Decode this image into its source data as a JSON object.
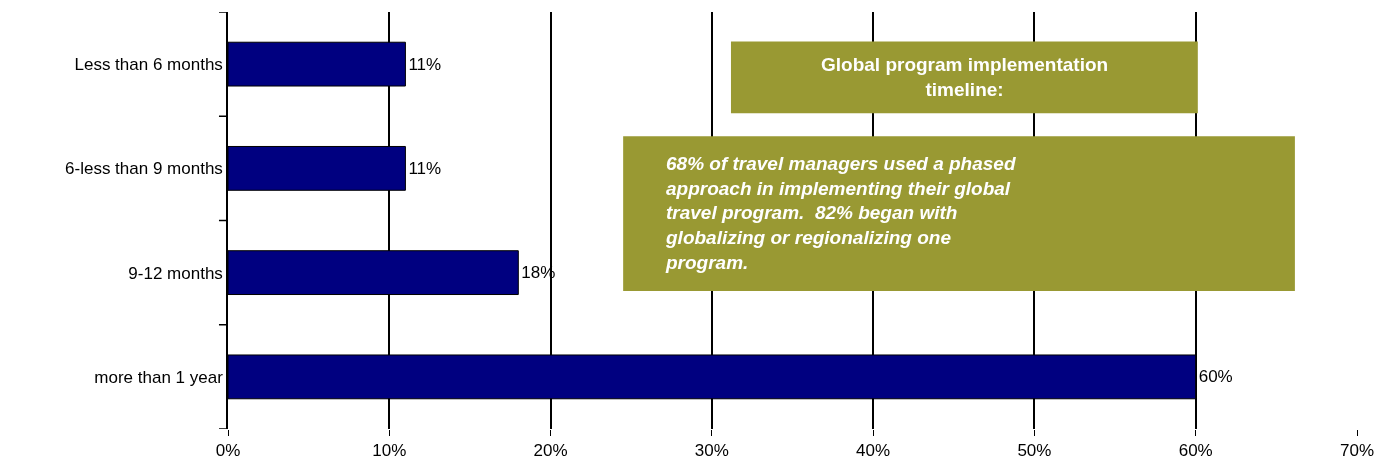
{
  "chart_data": {
    "type": "bar",
    "orientation": "horizontal",
    "categories": [
      "Less than 6 months",
      "6-less than 9 months",
      "9-12 months",
      "more than 1 year"
    ],
    "values": [
      11,
      11,
      18,
      60
    ],
    "value_labels": [
      "11%",
      "11%",
      "18%",
      "60%"
    ],
    "color": "#000080",
    "xlim": [
      0,
      70
    ],
    "xticks": [
      {
        "value": 0,
        "label": "0%"
      },
      {
        "value": 10,
        "label": "10%"
      },
      {
        "value": 20,
        "label": "20%"
      },
      {
        "value": 30,
        "label": "30%"
      },
      {
        "value": 40,
        "label": "40%"
      },
      {
        "value": 50,
        "label": "50%"
      },
      {
        "value": 60,
        "label": "60%"
      },
      {
        "value": 70,
        "label": "70%"
      }
    ],
    "grid": "x",
    "annotations": [
      "Global program implementation timeline:",
      "68% of travel managers used a phased approach in implementing their global travel program.  82% began with globalizing or regionalizing one program."
    ]
  }
}
